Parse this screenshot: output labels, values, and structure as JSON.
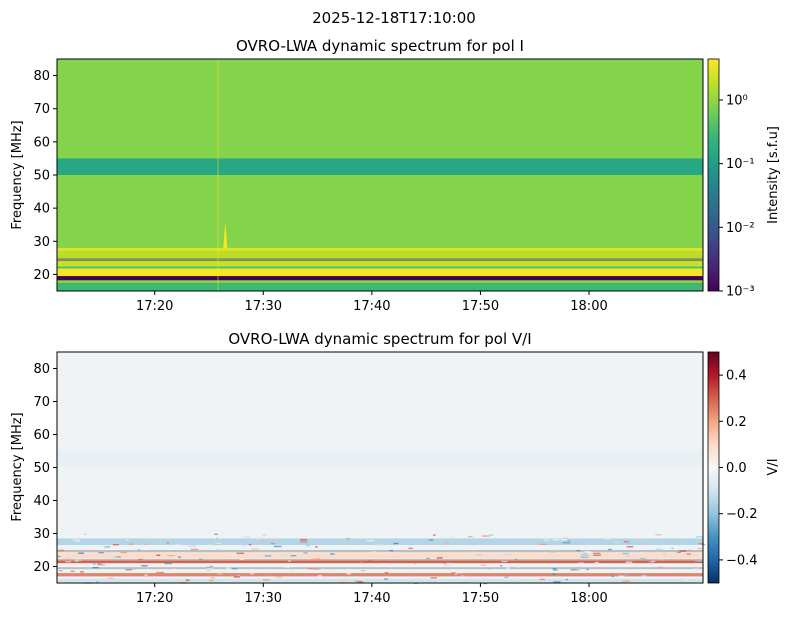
{
  "suptitle": "2025-12-18T17:10:00",
  "chart_data": [
    {
      "type": "heatmap",
      "title": "OVRO-LWA dynamic spectrum for pol I",
      "xlabel": "",
      "ylabel": "Frequency [MHz]",
      "xlim": [
        "17:11",
        "18:10"
      ],
      "ylim": [
        15,
        85
      ],
      "xticks": [
        "17:20",
        "17:30",
        "17:40",
        "17:50",
        "18:00"
      ],
      "yticks": [
        20,
        30,
        40,
        50,
        60,
        70,
        80
      ],
      "colorbar": {
        "label": "Intensity [s.f.u]",
        "scale": "log",
        "range": [
          0.001,
          4.4
        ],
        "ticks": [
          0.001,
          0.01,
          0.1,
          1
        ],
        "tick_labels": [
          "10⁻³",
          "10⁻²",
          "10⁻¹",
          "10⁰"
        ],
        "colormap": "viridis"
      },
      "background_value": 0.9,
      "bands": [
        {
          "f0": 50,
          "f1": 55,
          "value": 0.15
        },
        {
          "f0": 27,
          "f1": 28,
          "value": 3.0
        },
        {
          "f0": 25,
          "f1": 27,
          "value": 1.8
        },
        {
          "f0": 24,
          "f1": 24.8,
          "value": "masked"
        },
        {
          "f0": 22.5,
          "f1": 24,
          "value": 2.2
        },
        {
          "f0": 21.8,
          "f1": 22.3,
          "value": 0.4
        },
        {
          "f0": 19.5,
          "f1": 21.8,
          "value": 3.8
        },
        {
          "f0": 18.2,
          "f1": 19.5,
          "value": 0.001
        },
        {
          "f0": 17.5,
          "f1": 18.2,
          "value": 1.2
        },
        {
          "f0": 15,
          "f1": 17.5,
          "value": 0.3
        }
      ],
      "bursts": [
        {
          "time": "17:26.5",
          "f0": 28,
          "f1": 36,
          "value": 4.0
        }
      ]
    },
    {
      "type": "heatmap",
      "title": "OVRO-LWA dynamic spectrum for pol V/I",
      "xlabel": "",
      "ylabel": "Frequency [MHz]",
      "xlim": [
        "17:11",
        "18:10"
      ],
      "ylim": [
        15,
        85
      ],
      "xticks": [
        "17:20",
        "17:30",
        "17:40",
        "17:50",
        "18:00"
      ],
      "yticks": [
        20,
        30,
        40,
        50,
        60,
        70,
        80
      ],
      "colorbar": {
        "label": "V/I",
        "scale": "linear",
        "range": [
          -0.5,
          0.5
        ],
        "ticks": [
          -0.4,
          -0.2,
          0.0,
          0.2,
          0.4
        ],
        "tick_labels": [
          "−0.4",
          "−0.2",
          "0.0",
          "0.2",
          "0.4"
        ],
        "colormap": "RdBu_r"
      },
      "background_value": -0.02,
      "bands": [
        {
          "f0": 50,
          "f1": 55,
          "value": -0.04
        },
        {
          "f0": 26.5,
          "f1": 28.5,
          "value": -0.15
        },
        {
          "f0": 24.3,
          "f1": 25,
          "value": "masked"
        },
        {
          "f0": 22.5,
          "f1": 24,
          "value": 0.1
        },
        {
          "f0": 21.8,
          "f1": 22.3,
          "value": "masked"
        },
        {
          "f0": 21,
          "f1": 21.8,
          "value": 0.3
        },
        {
          "f0": 19.2,
          "f1": 19.8,
          "value": "masked"
        },
        {
          "f0": 17,
          "f1": 18,
          "value": 0.25
        },
        {
          "f0": 15.3,
          "f1": 16.3,
          "value": -0.1
        }
      ]
    }
  ]
}
